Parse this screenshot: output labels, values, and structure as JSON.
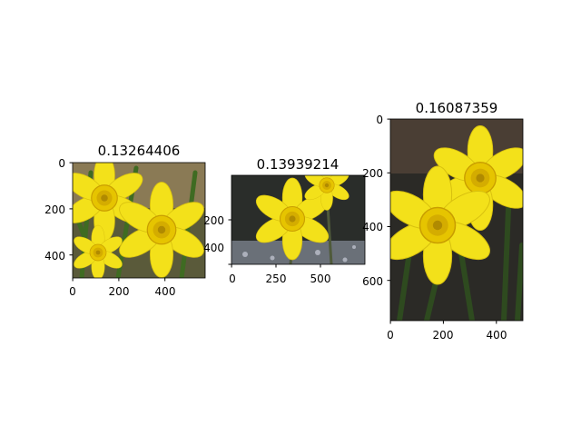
{
  "figure": {
    "panels": [
      {
        "title": "0.13264406",
        "image_size": [
          580,
          500
        ],
        "xticks": [
          "0",
          "200",
          "400"
        ],
        "yticks": [
          "0",
          "200",
          "400"
        ],
        "subject": "photo-yellow-daffodils-with-leaves"
      },
      {
        "title": "0.13939214",
        "image_size": [
          600,
          400
        ],
        "xticks": [
          "0",
          "250",
          "500"
        ],
        "yticks": [
          "200",
          "400"
        ],
        "subject": "photo-yellow-daffodil-dark-background"
      },
      {
        "title": "0.16087359",
        "image_size": [
          500,
          750
        ],
        "xticks": [
          "0",
          "200",
          "400"
        ],
        "yticks": [
          "0",
          "200",
          "400",
          "600"
        ],
        "subject": "photo-two-yellow-daffodils-closeup"
      }
    ],
    "colors": {
      "petal": "#f3e11a",
      "petal_light": "#f7ec52",
      "trumpet": "#e6c400",
      "trumpet_dark": "#c99e00",
      "leaf": "#3f6b22",
      "dark_bg": "#2a2d2a"
    }
  }
}
